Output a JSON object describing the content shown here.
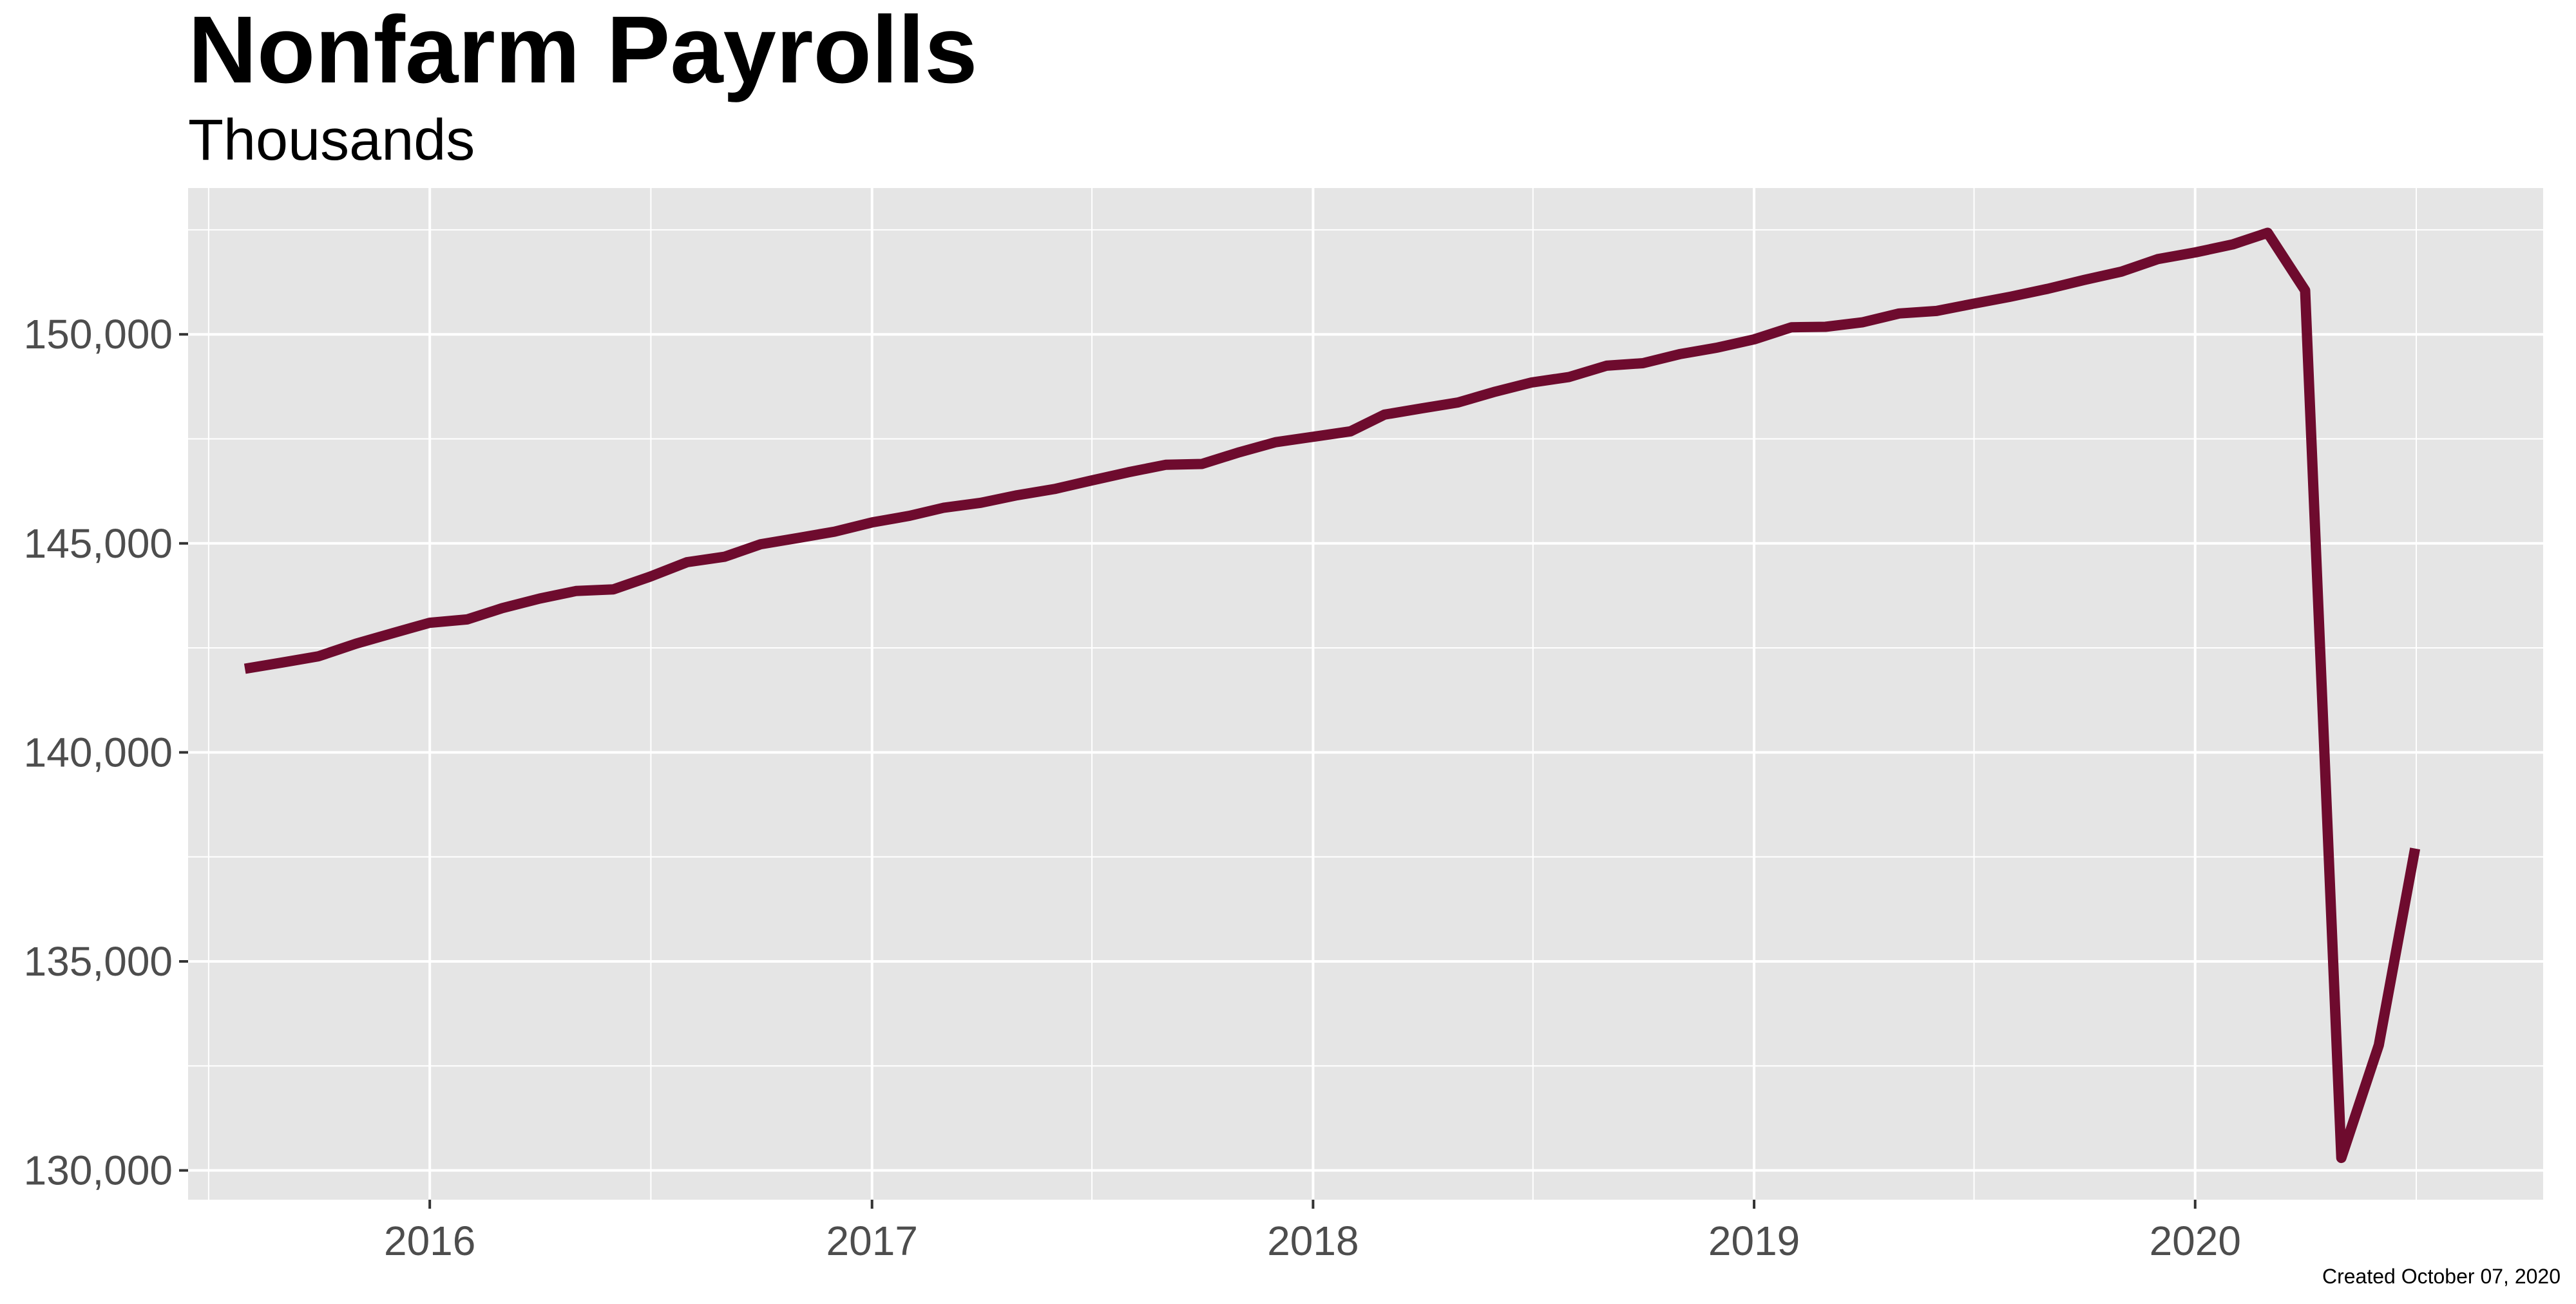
{
  "colors": {
    "panel_background": "#e5e5e5",
    "grid": "#ffffff",
    "line": "#6e0b2e",
    "tick_text": "#4d4d4d"
  },
  "chart_data": {
    "type": "line",
    "title": "Nonfarm Payrolls",
    "subtitle": "Thousands",
    "caption": "Created October 07, 2020",
    "xlabel": "",
    "ylabel": "",
    "x_tick_labels": [
      "2016",
      "2017",
      "2018",
      "2019",
      "2020"
    ],
    "y_tick_labels": [
      "130,000",
      "135,000",
      "140,000",
      "145,000",
      "150,000"
    ],
    "y_ticks": [
      130000,
      135000,
      140000,
      145000,
      150000
    ],
    "xlim": [
      "2015-06-15",
      "2020-10-15"
    ],
    "ylim": [
      129300,
      153500
    ],
    "grid": true,
    "legend": "none",
    "series": [
      {
        "x": [
          "2015-08-01",
          "2015-09-01",
          "2015-10-01",
          "2015-11-01",
          "2015-12-01",
          "2016-01-01",
          "2016-02-01",
          "2016-03-01",
          "2016-04-01",
          "2016-05-01",
          "2016-06-01",
          "2016-07-01",
          "2016-08-01",
          "2016-09-01",
          "2016-10-01",
          "2016-11-01",
          "2016-12-01",
          "2017-01-01",
          "2017-02-01",
          "2017-03-01",
          "2017-04-01",
          "2017-05-01",
          "2017-06-01",
          "2017-07-01",
          "2017-08-01",
          "2017-09-01",
          "2017-10-01",
          "2017-11-01",
          "2017-12-01",
          "2018-01-01",
          "2018-02-01",
          "2018-03-01",
          "2018-04-01",
          "2018-05-01",
          "2018-06-01",
          "2018-07-01",
          "2018-08-01",
          "2018-09-01",
          "2018-10-01",
          "2018-11-01",
          "2018-12-01",
          "2019-01-01",
          "2019-02-01",
          "2019-03-01",
          "2019-04-01",
          "2019-05-01",
          "2019-06-01",
          "2019-07-01",
          "2019-08-01",
          "2019-09-01",
          "2019-10-01",
          "2019-11-01",
          "2019-12-01",
          "2020-01-01",
          "2020-02-01",
          "2020-03-01",
          "2020-04-01",
          "2020-05-01",
          "2020-06-01",
          "2020-07-01"
        ],
        "y": [
          142000,
          142150,
          142300,
          142600,
          142850,
          143100,
          143180,
          143450,
          143680,
          143860,
          143900,
          144200,
          144550,
          144680,
          144980,
          145130,
          145280,
          145500,
          145660,
          145850,
          145970,
          146150,
          146300,
          146500,
          146700,
          146880,
          146900,
          147180,
          147420,
          147550,
          147680,
          148080,
          148230,
          148370,
          148630,
          148850,
          148980,
          149250,
          149310,
          149530,
          149680,
          149880,
          150170,
          150180,
          150290,
          150500,
          150560,
          150730,
          150900,
          151090,
          151300,
          151500,
          151800,
          151960,
          152150,
          152430,
          151050,
          130300,
          133000,
          137700
        ]
      }
    ]
  }
}
